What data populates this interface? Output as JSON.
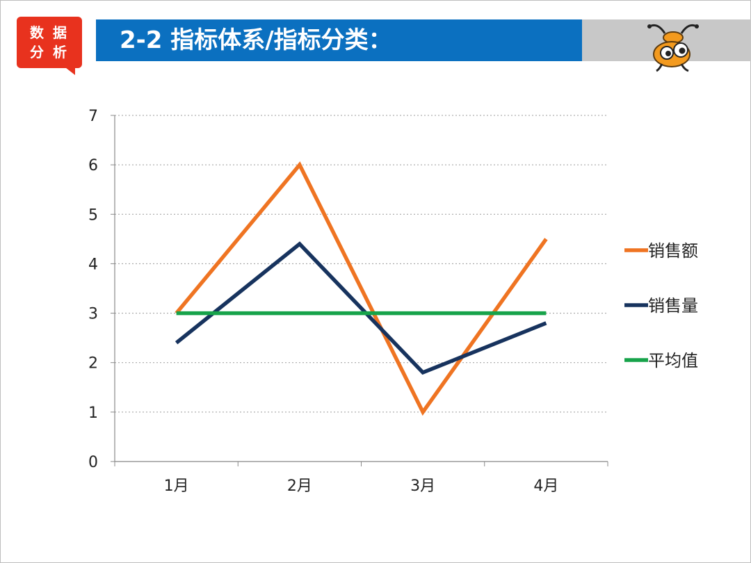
{
  "header": {
    "badge_line1": "数 据",
    "badge_line2": "分 析",
    "title": "2-2  指标体系/指标分类："
  },
  "chart_data": {
    "type": "line",
    "categories": [
      "1月",
      "2月",
      "3月",
      "4月"
    ],
    "series": [
      {
        "name": "销售额",
        "values": [
          3,
          6,
          1,
          4.5
        ],
        "color": "#ef7422"
      },
      {
        "name": "销售量",
        "values": [
          2.4,
          4.4,
          1.8,
          2.8
        ],
        "color": "#17335e"
      },
      {
        "name": "平均值",
        "values": [
          3,
          3,
          3,
          3
        ],
        "color": "#17a34a"
      }
    ],
    "ylim": [
      0,
      7
    ],
    "yticks": [
      0,
      1,
      2,
      3,
      4,
      5,
      6,
      7
    ],
    "grid": true,
    "legend": "right"
  }
}
